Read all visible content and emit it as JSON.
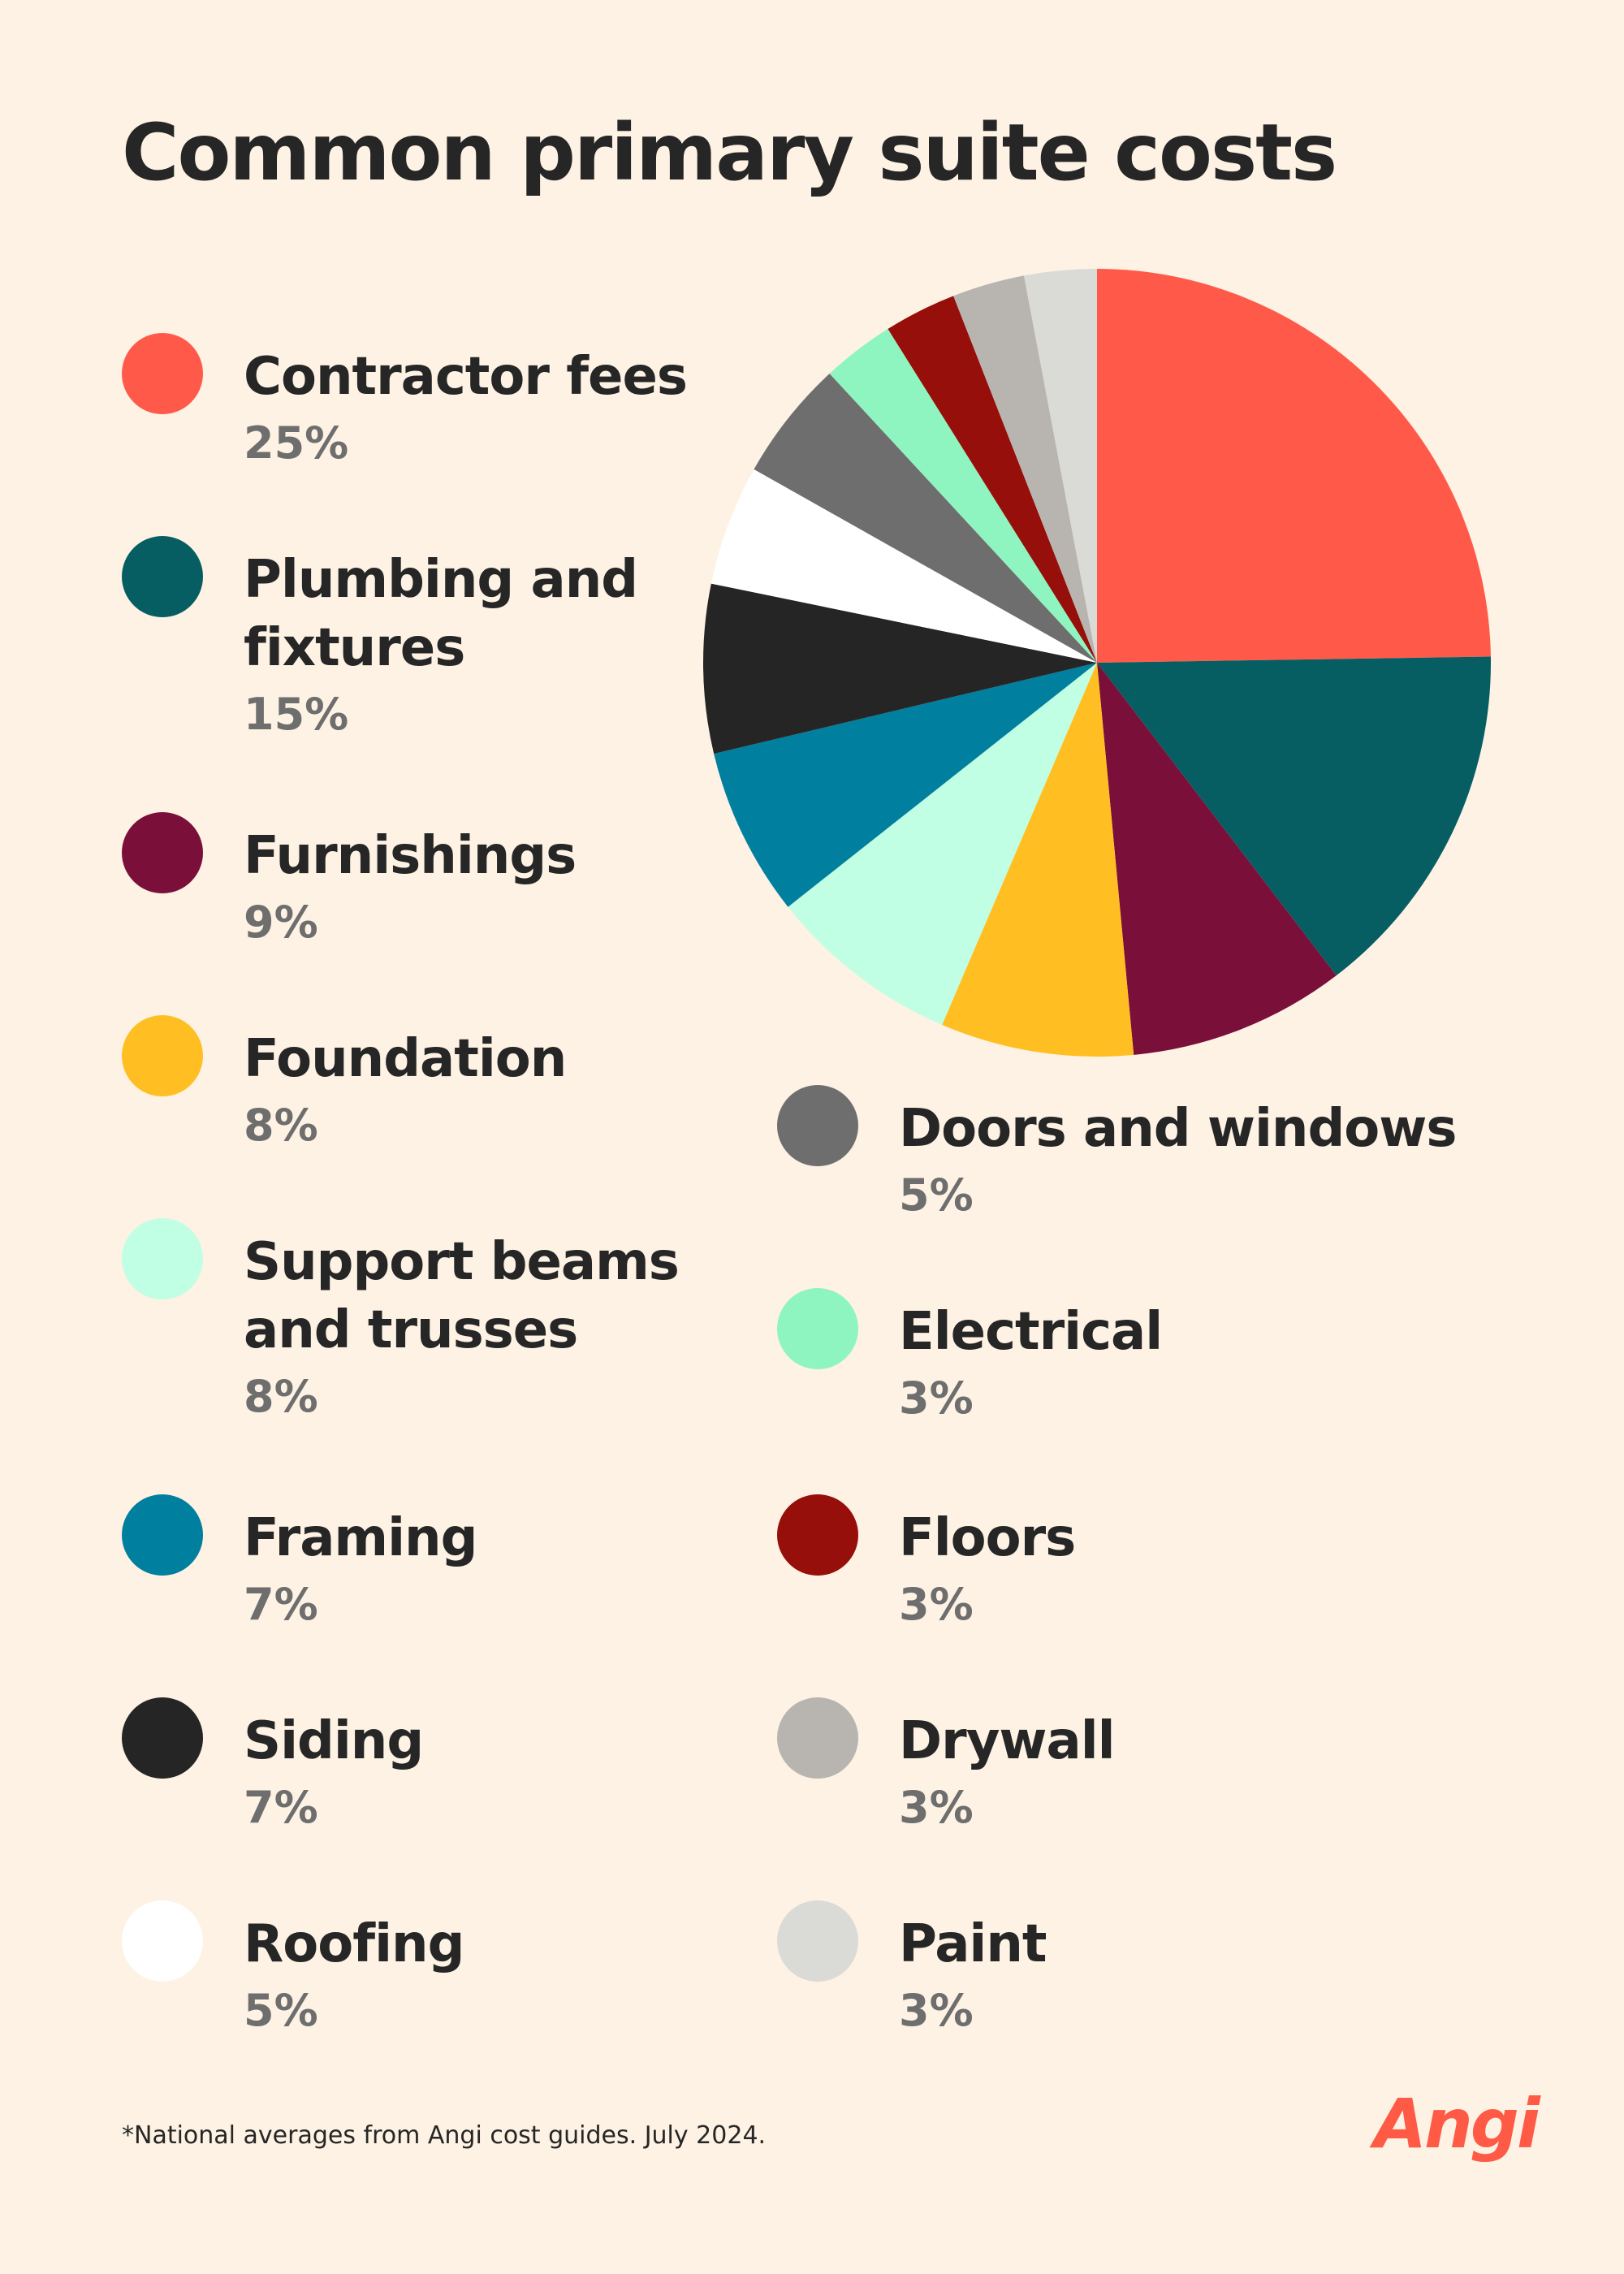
{
  "brand": {
    "logo_text": "Angi",
    "accent_color": "#ff5a45"
  },
  "footnote": "*National averages from Angi cost guides. July 2024.",
  "chart_data": {
    "type": "pie",
    "title": "Common primary suite costs",
    "legend_placement": "left and bottom-right",
    "start_angle": "12 o'clock, clockwise",
    "slices": [
      {
        "label": "Contractor fees",
        "value": 25,
        "value_label": "25%",
        "color": "#ff5a49"
      },
      {
        "label": "Plumbing and fixtures",
        "label_lines": [
          "Plumbing and",
          "fixtures"
        ],
        "value": 15,
        "value_label": "15%",
        "color": "#065e63"
      },
      {
        "label": "Furnishings",
        "value": 9,
        "value_label": "9%",
        "color": "#7a0f3a"
      },
      {
        "label": "Foundation",
        "value": 8,
        "value_label": "8%",
        "color": "#ffbf23"
      },
      {
        "label": "Support beams and trusses",
        "label_lines": [
          "Support beams",
          "and trusses"
        ],
        "value": 8,
        "value_label": "8%",
        "color": "#c0ffe3"
      },
      {
        "label": "Framing",
        "value": 7,
        "value_label": "7%",
        "color": "#007f9e"
      },
      {
        "label": "Siding",
        "value": 7,
        "value_label": "7%",
        "color": "#252525"
      },
      {
        "label": "Roofing",
        "value": 5,
        "value_label": "5%",
        "color": "#ffffff"
      },
      {
        "label": "Doors and windows",
        "value": 5,
        "value_label": "5%",
        "color": "#6e6e6e"
      },
      {
        "label": "Electrical",
        "value": 3,
        "value_label": "3%",
        "color": "#8ff5c0"
      },
      {
        "label": "Floors",
        "value": 3,
        "value_label": "3%",
        "color": "#960f0a"
      },
      {
        "label": "Drywall",
        "value": 3,
        "value_label": "3%",
        "color": "#b8b5b0"
      },
      {
        "label": "Paint",
        "value": 3,
        "value_label": "3%",
        "color": "#dadad6"
      }
    ]
  }
}
